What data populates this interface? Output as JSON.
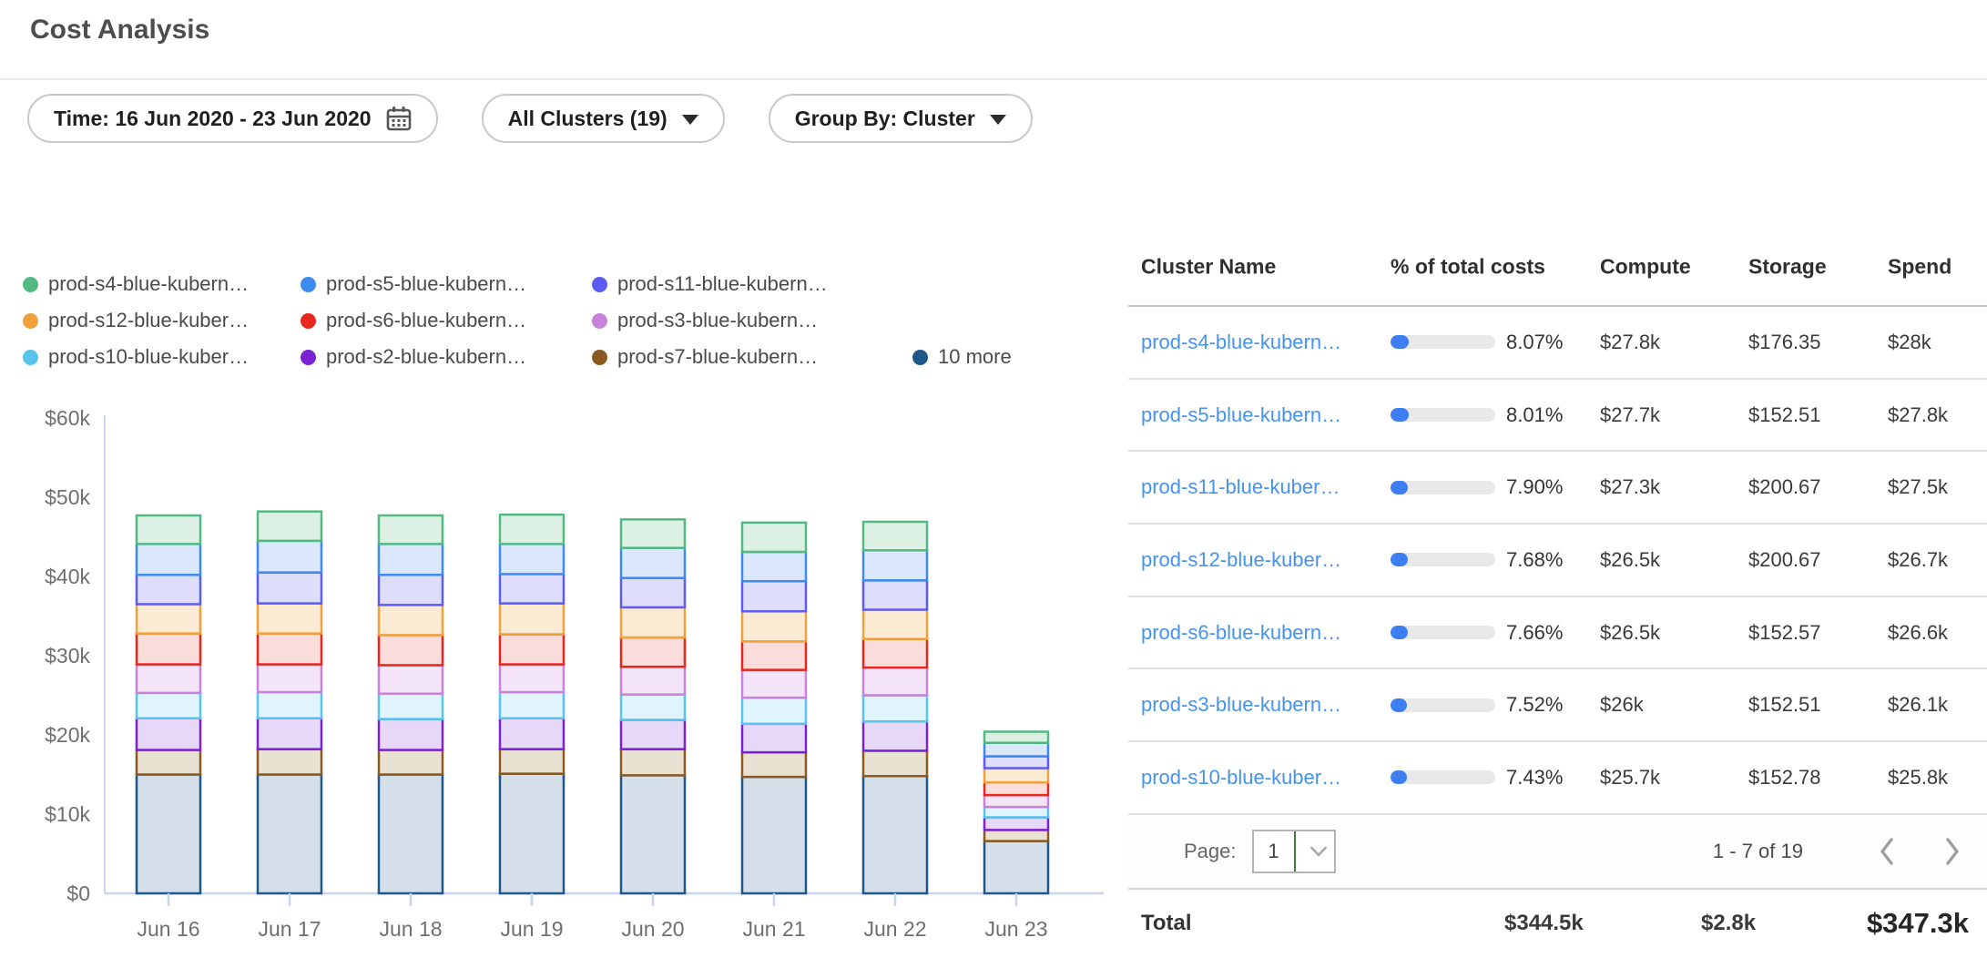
{
  "page": {
    "title": "Cost Analysis"
  },
  "filters": {
    "time_label": "Time: 16 Jun 2020 - 23 Jun 2020",
    "clusters_label": "All Clusters (19)",
    "group_by_label": "Group By: Cluster"
  },
  "legend": {
    "items": [
      {
        "label": "prod-s4-blue-kubern…",
        "color": "#53b983"
      },
      {
        "label": "prod-s5-blue-kubern…",
        "color": "#3d8bf0"
      },
      {
        "label": "prod-s11-blue-kubern…",
        "color": "#5c5cf2"
      },
      {
        "label": "prod-s12-blue-kuber…",
        "color": "#f0a13c"
      },
      {
        "label": "prod-s6-blue-kubern…",
        "color": "#e7271d"
      },
      {
        "label": "prod-s3-blue-kubern…",
        "color": "#c783db"
      },
      {
        "label": "prod-s10-blue-kuber…",
        "color": "#58c4ec"
      },
      {
        "label": "prod-s2-blue-kubern…",
        "color": "#7b22d3"
      },
      {
        "label": "prod-s7-blue-kubern…",
        "color": "#8a5a20"
      },
      {
        "label": "10 more",
        "color": "#20578a"
      }
    ]
  },
  "chart_data": {
    "type": "bar",
    "stacked": true,
    "values_unit": "USD_thousands",
    "categories": [
      "Jun 16",
      "Jun 17",
      "Jun 18",
      "Jun 19",
      "Jun 20",
      "Jun 21",
      "Jun 22",
      "Jun 23"
    ],
    "series": [
      {
        "name": "10 more",
        "stroke": "#20578a",
        "fill": "#d5dfe9",
        "values": [
          15.0,
          15.0,
          15.0,
          15.1,
          14.9,
          14.7,
          14.8,
          6.6
        ]
      },
      {
        "name": "prod-s7-blue-kubern…",
        "stroke": "#8a5a20",
        "fill": "#e9e2d3",
        "values": [
          3.1,
          3.2,
          3.1,
          3.1,
          3.3,
          3.1,
          3.2,
          1.4
        ]
      },
      {
        "name": "prod-s2-blue-kubern…",
        "stroke": "#7b22d3",
        "fill": "#e7d8f8",
        "values": [
          4.0,
          3.9,
          3.9,
          3.9,
          3.7,
          3.6,
          3.7,
          1.6
        ]
      },
      {
        "name": "prod-s10-blue-kuber…",
        "stroke": "#58c4ec",
        "fill": "#dff4fc",
        "values": [
          3.2,
          3.3,
          3.2,
          3.3,
          3.2,
          3.3,
          3.3,
          1.3
        ]
      },
      {
        "name": "prod-s3-blue-kubern…",
        "stroke": "#c783db",
        "fill": "#f3e4f7",
        "values": [
          3.6,
          3.5,
          3.6,
          3.5,
          3.5,
          3.5,
          3.5,
          1.5
        ]
      },
      {
        "name": "prod-s6-blue-kubern…",
        "stroke": "#e7271d",
        "fill": "#fadcda",
        "values": [
          3.9,
          3.9,
          3.8,
          3.8,
          3.7,
          3.6,
          3.6,
          1.6
        ]
      },
      {
        "name": "prod-s12-blue-kuber…",
        "stroke": "#f0a13c",
        "fill": "#fbebd4",
        "values": [
          3.7,
          3.8,
          3.8,
          3.9,
          3.8,
          3.8,
          3.7,
          1.8
        ]
      },
      {
        "name": "prod-s11-blue-kubern…",
        "stroke": "#5c5cf2",
        "fill": "#dedefb",
        "values": [
          3.7,
          3.9,
          3.8,
          3.7,
          3.7,
          3.8,
          3.7,
          1.5
        ]
      },
      {
        "name": "prod-s5-blue-kubern…",
        "stroke": "#3d8bf0",
        "fill": "#dbe8fb",
        "values": [
          3.9,
          4.0,
          3.9,
          3.8,
          3.8,
          3.7,
          3.8,
          1.7
        ]
      },
      {
        "name": "prod-s4-blue-kubern…",
        "stroke": "#53b983",
        "fill": "#dcf0e4",
        "values": [
          3.6,
          3.7,
          3.6,
          3.7,
          3.6,
          3.7,
          3.6,
          1.4
        ]
      }
    ],
    "y_ticks": [
      {
        "value": 0,
        "label": "$0"
      },
      {
        "value": 10,
        "label": "$10k"
      },
      {
        "value": 20,
        "label": "$20k"
      },
      {
        "value": 30,
        "label": "$30k"
      },
      {
        "value": 40,
        "label": "$40k"
      },
      {
        "value": 50,
        "label": "$50k"
      },
      {
        "value": 60,
        "label": "$60k"
      }
    ],
    "ylim": [
      0,
      60000
    ],
    "grid": false,
    "legend_position": "top"
  },
  "table": {
    "columns": [
      "Cluster Name",
      "% of total costs",
      "Compute",
      "Storage",
      "Spend"
    ],
    "rows": [
      {
        "name": "prod-s4-blue-kubern…",
        "pct": "8.07%",
        "compute": "$27.8k",
        "storage": "$176.35",
        "spend": "$28k"
      },
      {
        "name": "prod-s5-blue-kubern…",
        "pct": "8.01%",
        "compute": "$27.7k",
        "storage": "$152.51",
        "spend": "$27.8k"
      },
      {
        "name": "prod-s11-blue-kuber…",
        "pct": "7.90%",
        "compute": "$27.3k",
        "storage": "$200.67",
        "spend": "$27.5k"
      },
      {
        "name": "prod-s12-blue-kuber…",
        "pct": "7.68%",
        "compute": "$26.5k",
        "storage": "$200.67",
        "spend": "$26.7k"
      },
      {
        "name": "prod-s6-blue-kubern…",
        "pct": "7.66%",
        "compute": "$26.5k",
        "storage": "$152.57",
        "spend": "$26.6k"
      },
      {
        "name": "prod-s3-blue-kubern…",
        "pct": "7.52%",
        "compute": "$26k",
        "storage": "$152.51",
        "spend": "$26.1k"
      },
      {
        "name": "prod-s10-blue-kuber…",
        "pct": "7.43%",
        "compute": "$25.7k",
        "storage": "$152.78",
        "spend": "$25.8k"
      }
    ],
    "pagination": {
      "page_label": "Page:",
      "page_value": "1",
      "range": "1 - 7 of 19"
    },
    "total": {
      "label": "Total",
      "compute": "$344.5k",
      "storage": "$2.8k",
      "spend": "$347.3k"
    }
  },
  "colors": {
    "link_blue": "#4593ec",
    "progress_fill_blue": "#3d7ff2",
    "select_accent_green": "#3e7b34"
  }
}
